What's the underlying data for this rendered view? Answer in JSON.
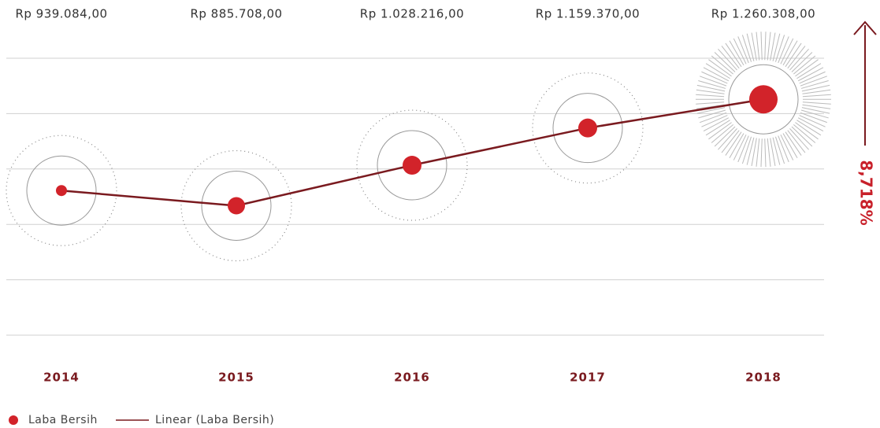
{
  "chart_data": {
    "type": "line",
    "categories": [
      "2014",
      "2015",
      "2016",
      "2017",
      "2018"
    ],
    "series": [
      {
        "name": "Laba Bersih",
        "color": "#d2232a",
        "values": [
          939084,
          885708,
          1028216,
          1159370,
          1260308
        ],
        "value_labels": [
          "Rp 939.084,00",
          "Rp 885.708,00",
          "Rp 1.028.216,00",
          "Rp 1.159.370,00",
          "Rp 1.260.308,00"
        ]
      }
    ],
    "trend_name": "Linear (Laba Bersih)",
    "trend_color": "#7a1a1f",
    "annotation": "8,718%",
    "ylim": [
      430000,
      1405000
    ],
    "grid": true
  }
}
